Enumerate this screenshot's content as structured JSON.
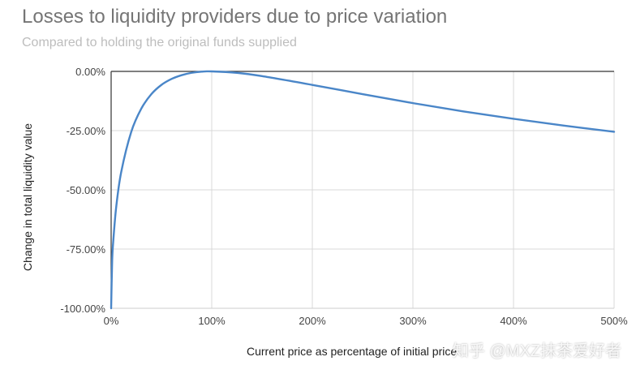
{
  "chart_data": {
    "type": "line",
    "title": "Losses to liquidity providers due to price variation",
    "subtitle": "Compared to holding the original funds supplied",
    "xlabel": "Current price as percentage of initial price",
    "ylabel": "Change in total liquidity value",
    "xlim": [
      0,
      500
    ],
    "ylim": [
      -100,
      0
    ],
    "x_ticks": [
      "0%",
      "100%",
      "200%",
      "300%",
      "400%",
      "500%"
    ],
    "y_ticks": [
      "0.00%",
      "-25.00%",
      "-50.00%",
      "-75.00%",
      "-100.00%"
    ],
    "grid": true,
    "legend": "none",
    "series": [
      {
        "color": "#4a86c8",
        "x": [
          0,
          1,
          2,
          5,
          10,
          20,
          30,
          40,
          50,
          60,
          70,
          80,
          90,
          100,
          125,
          150,
          200,
          250,
          300,
          350,
          400,
          450,
          500
        ],
        "y": [
          -100,
          -80.2,
          -72.3,
          -57.4,
          -42.5,
          -25.5,
          -15.7,
          -9.6,
          -5.7,
          -3.2,
          -1.6,
          -0.6,
          -0.1,
          0,
          -0.6,
          -2.0,
          -5.7,
          -9.6,
          -13.4,
          -16.9,
          -20.0,
          -22.9,
          -25.5
        ]
      }
    ]
  },
  "watermark": "知乎 @MXZ抹茶爱好者"
}
